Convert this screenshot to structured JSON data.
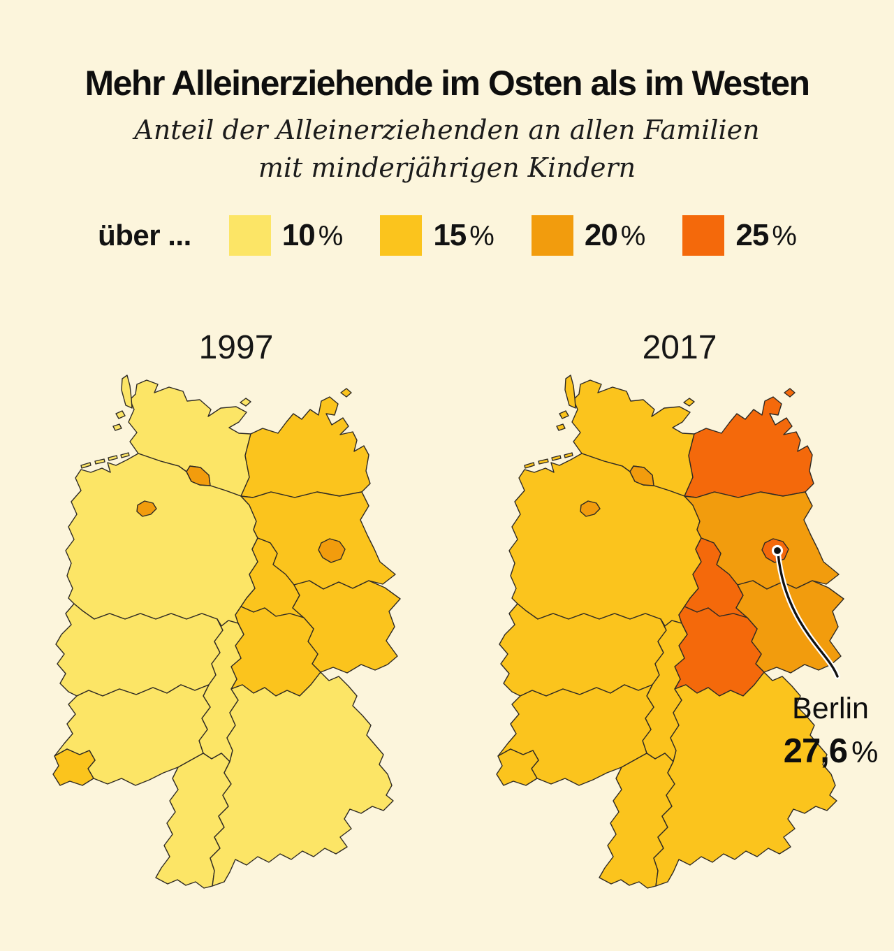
{
  "header": {
    "title": "Mehr Alleinerziehende im Osten als im Westen",
    "subtitle_line1": "Anteil der Alleinerziehenden an allen Familien",
    "subtitle_line2": "mit minderjährigen Kindern"
  },
  "legend": {
    "prefix": "über ..."
  },
  "colors": {
    "background": "#FCF5DC",
    "map_border": "#2E2A24",
    "text": "#121212",
    "leader_line": "#111111",
    "leader_casing": "#FFFFFF"
  },
  "chart_data": {
    "type": "choropleth",
    "geography": "Germany, Bundesländer",
    "title": "Mehr Alleinerziehende im Osten als im Westen",
    "subtitle": "Anteil der Alleinerziehenden an allen Familien mit minderjährigen Kindern",
    "legend_prefix": "über ...",
    "buckets": [
      {
        "value": "10",
        "unit": "%",
        "color": "#FCE566"
      },
      {
        "value": "15",
        "unit": "%",
        "color": "#FBC41D"
      },
      {
        "value": "20",
        "unit": "%",
        "color": "#F29C0D"
      },
      {
        "value": "25",
        "unit": "%",
        "color": "#F4690B"
      }
    ],
    "state_names": {
      "SH": "Schleswig-Holstein",
      "HH": "Hamburg",
      "NI": "Niedersachsen",
      "HB": "Bremen",
      "MV": "Mecklenburg-Vorpommern",
      "BB": "Brandenburg",
      "BE": "Berlin",
      "ST": "Sachsen-Anhalt",
      "SN": "Sachsen",
      "TH": "Thüringen",
      "NW": "Nordrhein-Westfalen",
      "HE": "Hessen",
      "RP": "Rheinland-Pfalz",
      "SL": "Saarland",
      "BW": "Baden-Württemberg",
      "BY": "Bayern"
    },
    "maps": [
      {
        "year": "1997",
        "values": {
          "SH": 10,
          "HH": 20,
          "NI": 10,
          "HB": 20,
          "MV": 15,
          "BB": 15,
          "BE": 20,
          "ST": 15,
          "SN": 15,
          "TH": 15,
          "NW": 10,
          "HE": 10,
          "RP": 10,
          "SL": 15,
          "BW": 10,
          "BY": 10
        }
      },
      {
        "year": "2017",
        "values": {
          "SH": 15,
          "HH": 20,
          "NI": 15,
          "HB": 20,
          "MV": 25,
          "BB": 20,
          "BE": 25,
          "ST": 25,
          "SN": 20,
          "TH": 25,
          "NW": 15,
          "HE": 15,
          "RP": 15,
          "SL": 15,
          "BW": 15,
          "BY": 15
        }
      }
    ],
    "annotation": {
      "label": "Berlin",
      "value": "27,6",
      "unit": "%",
      "map_year": "2017",
      "state": "BE"
    }
  }
}
